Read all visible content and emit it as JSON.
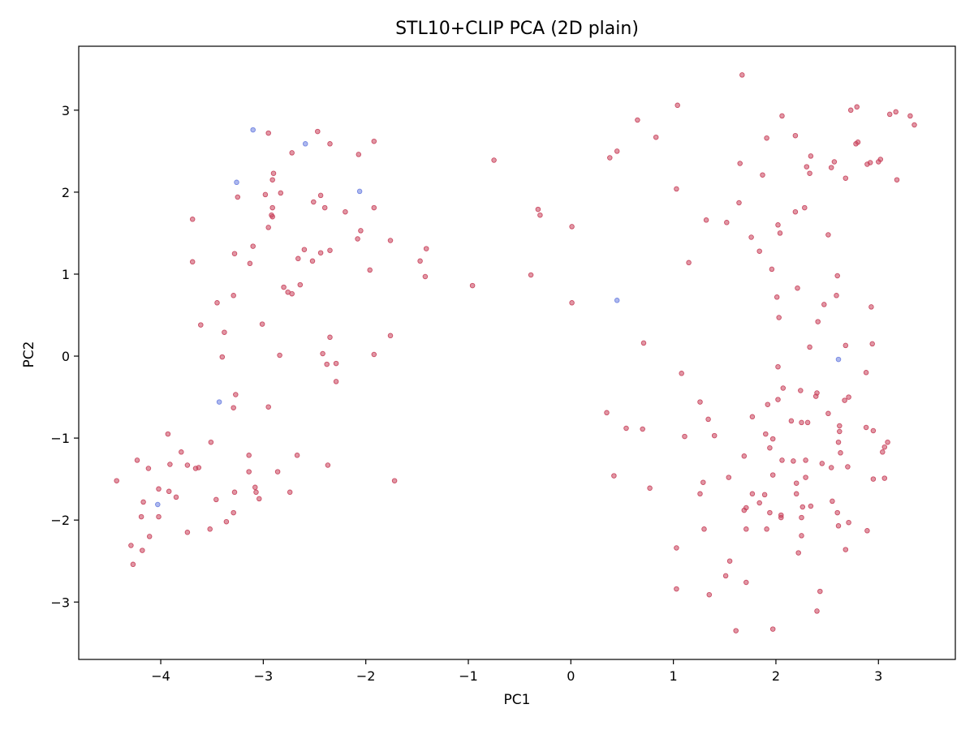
{
  "chart_data": {
    "type": "scatter",
    "title": "STL10+CLIP PCA (2D plain)",
    "xlabel": "PC1",
    "ylabel": "PC2",
    "xlim": [
      -4.8,
      3.75
    ],
    "ylim": [
      -3.7,
      3.78
    ],
    "xticks": [
      -4,
      -3,
      -2,
      -1,
      0,
      1,
      2,
      3
    ],
    "yticks": [
      -3,
      -2,
      -1,
      0,
      1,
      2,
      3
    ],
    "xtick_labels": [
      "−4",
      "−3",
      "−2",
      "−1",
      "0",
      "1",
      "2",
      "3"
    ],
    "ytick_labels": [
      "−3",
      "−2",
      "−1",
      "0",
      "1",
      "2",
      "3"
    ],
    "grid": false,
    "series": [
      {
        "color": "#c8405a",
        "points": [
          [
            -2.95,
            2.72
          ],
          [
            -2.72,
            2.48
          ],
          [
            -2.47,
            2.74
          ],
          [
            -2.35,
            2.59
          ],
          [
            -2.07,
            2.46
          ],
          [
            -1.92,
            2.62
          ],
          [
            -3.25,
            1.94
          ],
          [
            -2.98,
            1.97
          ],
          [
            -2.9,
            2.23
          ],
          [
            -2.91,
            2.15
          ],
          [
            -2.83,
            1.99
          ],
          [
            -2.51,
            1.88
          ],
          [
            -2.44,
            1.96
          ],
          [
            -2.4,
            1.81
          ],
          [
            -2.2,
            1.76
          ],
          [
            -2.05,
            1.53
          ],
          [
            -2.08,
            1.43
          ],
          [
            -1.92,
            1.81
          ],
          [
            -1.76,
            1.41
          ],
          [
            -1.41,
            1.31
          ],
          [
            -1.47,
            1.16
          ],
          [
            -1.42,
            0.97
          ],
          [
            -1.96,
            1.05
          ],
          [
            -2.91,
            1.81
          ],
          [
            -2.92,
            1.72
          ],
          [
            -2.91,
            1.7
          ],
          [
            -2.95,
            1.57
          ],
          [
            -3.1,
            1.34
          ],
          [
            -3.13,
            1.13
          ],
          [
            -3.28,
            1.25
          ],
          [
            -3.69,
            1.67
          ],
          [
            -3.69,
            1.15
          ],
          [
            -2.6,
            1.3
          ],
          [
            -2.66,
            1.19
          ],
          [
            -2.52,
            1.16
          ],
          [
            -2.44,
            1.26
          ],
          [
            -2.35,
            1.29
          ],
          [
            -2.64,
            0.87
          ],
          [
            -2.8,
            0.84
          ],
          [
            -2.76,
            0.78
          ],
          [
            -2.72,
            0.76
          ],
          [
            -3.29,
            0.74
          ],
          [
            -3.45,
            0.65
          ],
          [
            -3.61,
            0.38
          ],
          [
            -3.38,
            0.29
          ],
          [
            -3.01,
            0.39
          ],
          [
            -3.4,
            -0.01
          ],
          [
            -2.84,
            0.01
          ],
          [
            -2.35,
            0.23
          ],
          [
            -2.42,
            0.03
          ],
          [
            -2.38,
            -0.1
          ],
          [
            -2.29,
            -0.09
          ],
          [
            -2.29,
            -0.31
          ],
          [
            -1.76,
            0.25
          ],
          [
            -1.92,
            0.02
          ],
          [
            -3.27,
            -0.47
          ],
          [
            -3.29,
            -0.63
          ],
          [
            -2.95,
            -0.62
          ],
          [
            -3.51,
            -1.05
          ],
          [
            -3.14,
            -1.21
          ],
          [
            -2.67,
            -1.21
          ],
          [
            -2.37,
            -1.33
          ],
          [
            -3.14,
            -1.41
          ],
          [
            -2.86,
            -1.41
          ],
          [
            -3.08,
            -1.6
          ],
          [
            -3.07,
            -1.66
          ],
          [
            -3.04,
            -1.74
          ],
          [
            -2.74,
            -1.66
          ],
          [
            -3.28,
            -1.66
          ],
          [
            -3.46,
            -1.75
          ],
          [
            -3.36,
            -2.02
          ],
          [
            -3.29,
            -1.91
          ],
          [
            -3.52,
            -2.11
          ],
          [
            -1.72,
            -1.52
          ],
          [
            -3.93,
            -0.95
          ],
          [
            -3.8,
            -1.17
          ],
          [
            -3.91,
            -1.32
          ],
          [
            -3.74,
            -1.33
          ],
          [
            -3.66,
            -1.37
          ],
          [
            -3.63,
            -1.36
          ],
          [
            -4.23,
            -1.27
          ],
          [
            -4.12,
            -1.37
          ],
          [
            -4.43,
            -1.52
          ],
          [
            -4.17,
            -1.78
          ],
          [
            -4.02,
            -1.62
          ],
          [
            -3.92,
            -1.65
          ],
          [
            -3.85,
            -1.72
          ],
          [
            -4.19,
            -1.96
          ],
          [
            -4.02,
            -1.96
          ],
          [
            -3.74,
            -2.15
          ],
          [
            -4.11,
            -2.2
          ],
          [
            -4.29,
            -2.31
          ],
          [
            -4.18,
            -2.37
          ],
          [
            -4.27,
            -2.54
          ],
          [
            -0.75,
            2.39
          ],
          [
            -0.32,
            1.79
          ],
          [
            -0.3,
            1.72
          ],
          [
            0.01,
            1.58
          ],
          [
            -0.39,
            0.99
          ],
          [
            -0.96,
            0.86
          ],
          [
            0.01,
            0.65
          ],
          [
            0.38,
            2.42
          ],
          [
            0.45,
            2.5
          ],
          [
            0.65,
            2.88
          ],
          [
            0.83,
            2.67
          ],
          [
            1.04,
            3.06
          ],
          [
            1.03,
            2.04
          ],
          [
            1.67,
            3.43
          ],
          [
            1.65,
            2.35
          ],
          [
            1.32,
            1.66
          ],
          [
            1.52,
            1.63
          ],
          [
            1.64,
            1.87
          ],
          [
            1.15,
            1.14
          ],
          [
            0.71,
            0.16
          ],
          [
            1.08,
            -0.21
          ],
          [
            0.35,
            -0.69
          ],
          [
            0.54,
            -0.88
          ],
          [
            0.7,
            -0.89
          ],
          [
            1.11,
            -0.98
          ],
          [
            1.26,
            -0.56
          ],
          [
            1.34,
            -0.77
          ],
          [
            1.4,
            -0.97
          ],
          [
            0.42,
            -1.46
          ],
          [
            0.77,
            -1.61
          ],
          [
            1.29,
            -1.54
          ],
          [
            1.26,
            -1.68
          ],
          [
            1.54,
            -1.48
          ],
          [
            1.03,
            -2.34
          ],
          [
            1.3,
            -2.11
          ],
          [
            1.55,
            -2.5
          ],
          [
            1.51,
            -2.68
          ],
          [
            1.03,
            -2.84
          ],
          [
            1.35,
            -2.91
          ],
          [
            1.71,
            -2.76
          ],
          [
            1.61,
            -3.35
          ],
          [
            1.97,
            -3.33
          ],
          [
            1.91,
            2.66
          ],
          [
            1.87,
            2.21
          ],
          [
            2.06,
            2.93
          ],
          [
            2.19,
            2.69
          ],
          [
            2.34,
            2.44
          ],
          [
            2.3,
            2.31
          ],
          [
            2.33,
            2.23
          ],
          [
            2.28,
            1.81
          ],
          [
            2.19,
            1.76
          ],
          [
            2.02,
            1.6
          ],
          [
            2.04,
            1.5
          ],
          [
            1.76,
            1.45
          ],
          [
            1.84,
            1.28
          ],
          [
            1.96,
            1.06
          ],
          [
            2.01,
            0.72
          ],
          [
            2.03,
            0.47
          ],
          [
            2.21,
            0.83
          ],
          [
            2.51,
            1.48
          ],
          [
            2.6,
            0.98
          ],
          [
            2.59,
            0.74
          ],
          [
            2.47,
            0.63
          ],
          [
            2.41,
            0.42
          ],
          [
            2.33,
            0.11
          ],
          [
            2.73,
            3.0
          ],
          [
            2.79,
            3.04
          ],
          [
            2.8,
            2.61
          ],
          [
            2.78,
            2.59
          ],
          [
            2.57,
            2.37
          ],
          [
            2.54,
            2.3
          ],
          [
            2.89,
            2.34
          ],
          [
            2.92,
            2.36
          ],
          [
            3.0,
            2.37
          ],
          [
            3.02,
            2.4
          ],
          [
            2.68,
            2.17
          ],
          [
            3.11,
            2.95
          ],
          [
            3.17,
            2.98
          ],
          [
            3.31,
            2.93
          ],
          [
            3.35,
            2.82
          ],
          [
            3.18,
            2.15
          ],
          [
            2.93,
            0.6
          ],
          [
            2.94,
            0.15
          ],
          [
            2.68,
            0.13
          ],
          [
            2.88,
            -0.2
          ],
          [
            2.02,
            -0.13
          ],
          [
            2.07,
            -0.39
          ],
          [
            2.02,
            -0.53
          ],
          [
            1.92,
            -0.59
          ],
          [
            2.24,
            -0.42
          ],
          [
            2.4,
            -0.45
          ],
          [
            2.39,
            -0.49
          ],
          [
            2.15,
            -0.79
          ],
          [
            2.25,
            -0.81
          ],
          [
            2.31,
            -0.81
          ],
          [
            2.51,
            -0.7
          ],
          [
            2.62,
            -0.85
          ],
          [
            2.62,
            -0.92
          ],
          [
            2.67,
            -0.54
          ],
          [
            2.71,
            -0.5
          ],
          [
            1.77,
            -0.74
          ],
          [
            1.9,
            -0.95
          ],
          [
            1.97,
            -1.01
          ],
          [
            1.94,
            -1.12
          ],
          [
            2.06,
            -1.27
          ],
          [
            2.17,
            -1.28
          ],
          [
            2.29,
            -1.27
          ],
          [
            1.69,
            -1.22
          ],
          [
            2.45,
            -1.31
          ],
          [
            2.54,
            -1.36
          ],
          [
            2.63,
            -1.18
          ],
          [
            2.61,
            -1.05
          ],
          [
            2.7,
            -1.35
          ],
          [
            2.88,
            -0.87
          ],
          [
            2.95,
            -0.91
          ],
          [
            3.09,
            -1.05
          ],
          [
            3.06,
            -1.11
          ],
          [
            3.04,
            -1.17
          ],
          [
            2.95,
            -1.5
          ],
          [
            3.06,
            -1.49
          ],
          [
            1.97,
            -1.45
          ],
          [
            2.2,
            -1.55
          ],
          [
            2.29,
            -1.48
          ],
          [
            1.77,
            -1.68
          ],
          [
            1.89,
            -1.69
          ],
          [
            2.2,
            -1.68
          ],
          [
            2.34,
            -1.83
          ],
          [
            2.26,
            -1.84
          ],
          [
            2.25,
            -1.97
          ],
          [
            2.55,
            -1.77
          ],
          [
            2.6,
            -1.91
          ],
          [
            1.84,
            -1.79
          ],
          [
            1.71,
            -1.85
          ],
          [
            1.69,
            -1.88
          ],
          [
            1.94,
            -1.91
          ],
          [
            2.05,
            -1.94
          ],
          [
            2.05,
            -1.97
          ],
          [
            2.25,
            -2.19
          ],
          [
            2.22,
            -2.4
          ],
          [
            2.71,
            -2.03
          ],
          [
            2.61,
            -2.07
          ],
          [
            2.89,
            -2.13
          ],
          [
            1.91,
            -2.11
          ],
          [
            1.71,
            -2.11
          ],
          [
            2.68,
            -2.36
          ],
          [
            2.43,
            -2.87
          ],
          [
            2.4,
            -3.11
          ]
        ]
      },
      {
        "color": "#6a7ee0",
        "points": [
          [
            -3.1,
            2.76
          ],
          [
            -2.59,
            2.59
          ],
          [
            -3.26,
            2.12
          ],
          [
            -2.06,
            2.01
          ],
          [
            0.45,
            0.68
          ],
          [
            2.61,
            -0.04
          ],
          [
            -3.43,
            -0.56
          ],
          [
            -4.03,
            -1.81
          ]
        ]
      }
    ]
  }
}
